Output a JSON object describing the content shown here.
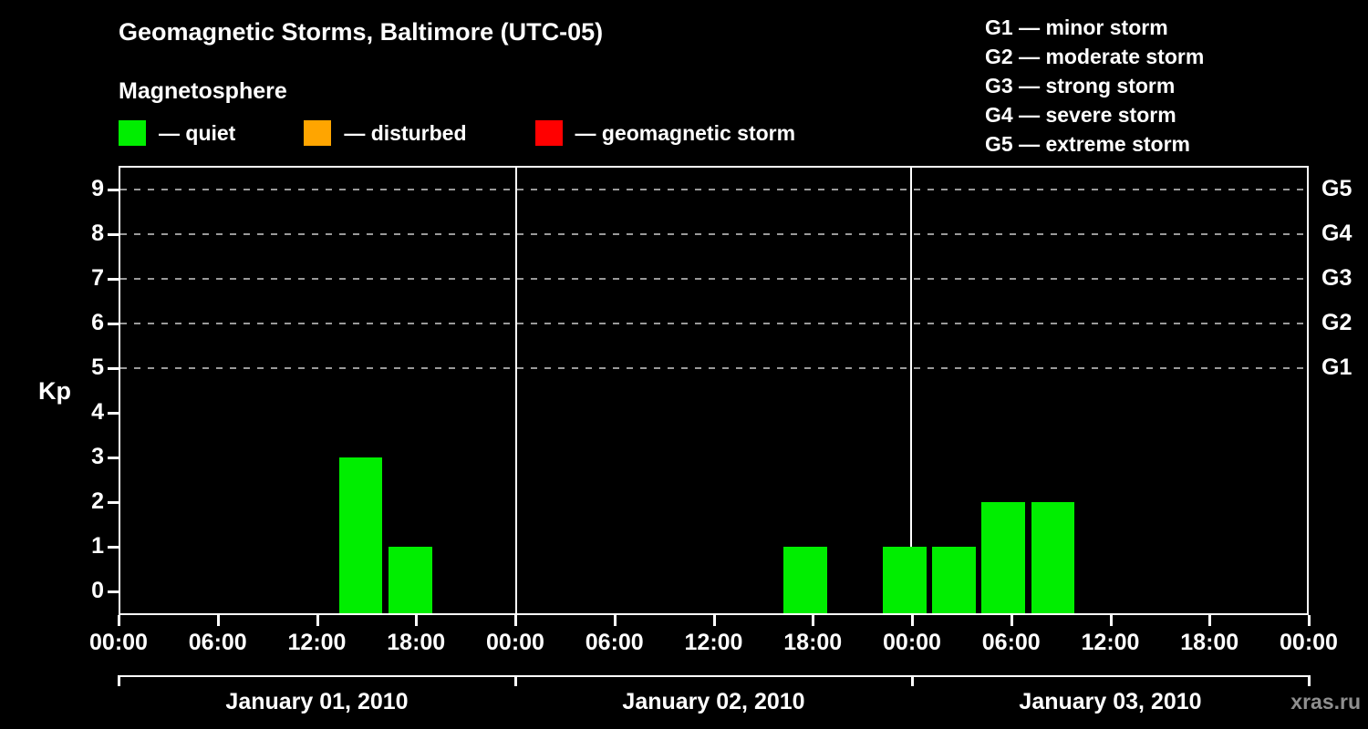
{
  "watermark": "xras.ru",
  "chart_data": {
    "type": "bar",
    "title": "Geomagnetic Storms, Baltimore (UTC-05)",
    "subtitle": "Magnetosphere",
    "ylabel": "Kp",
    "ylim": [
      -0.5,
      9.5
    ],
    "yticks": [
      0,
      1,
      2,
      3,
      4,
      5,
      6,
      7,
      8,
      9
    ],
    "gridlines_kp": [
      5,
      6,
      7,
      8,
      9
    ],
    "x_tick_labels": [
      "00:00",
      "06:00",
      "12:00",
      "18:00"
    ],
    "bar_interval_hours": 3,
    "right_axis": [
      {
        "label": "G5",
        "value": 9
      },
      {
        "label": "G4",
        "value": 8
      },
      {
        "label": "G3",
        "value": 7
      },
      {
        "label": "G2",
        "value": 6
      },
      {
        "label": "G1",
        "value": 5
      }
    ],
    "legend": [
      {
        "key": "quiet",
        "color": "#00ee00",
        "label": "— quiet"
      },
      {
        "key": "disturbed",
        "color": "#ffa500",
        "label": "— disturbed"
      },
      {
        "key": "storm",
        "color": "#ff0000",
        "label": "— geomagnetic storm"
      }
    ],
    "storm_scale": [
      {
        "code": "g1",
        "text": "G1 — minor storm"
      },
      {
        "code": "g2",
        "text": "G2 — moderate storm"
      },
      {
        "code": "g3",
        "text": "G3 — strong storm"
      },
      {
        "code": "g4",
        "text": "G4 — severe storm"
      },
      {
        "code": "g5",
        "text": "G5 — extreme storm"
      }
    ],
    "colors": {
      "quiet": "#00ee00",
      "disturbed": "#ffa500",
      "storm": "#ff0000"
    },
    "thresholds": {
      "disturbed_min": 4,
      "storm_min": 5
    },
    "days": [
      {
        "date": "January 01, 2010",
        "kp": [
          0,
          0,
          0,
          0,
          3,
          1,
          0,
          0
        ]
      },
      {
        "date": "January 02, 2010",
        "kp": [
          0,
          0,
          0,
          0,
          0,
          1,
          0,
          1
        ]
      },
      {
        "date": "January 03, 2010",
        "kp": [
          1,
          2,
          2,
          0,
          0,
          0,
          0,
          0
        ]
      }
    ]
  }
}
